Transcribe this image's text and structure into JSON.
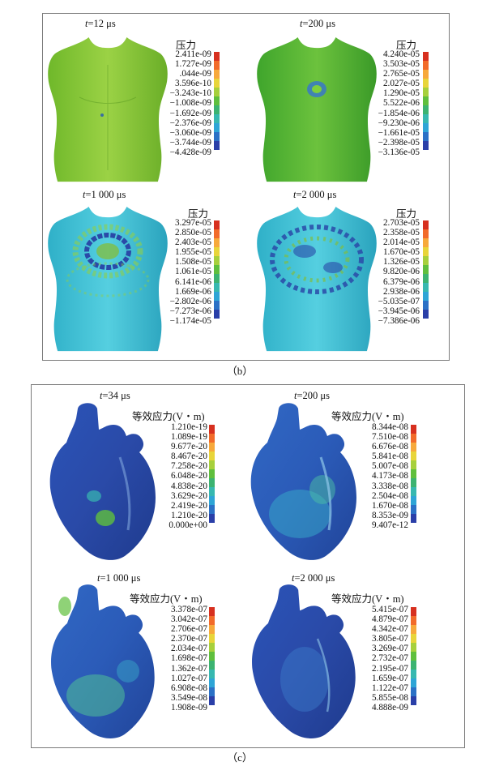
{
  "caption_b": "（b）",
  "caption_c": "（c）",
  "legend_colors": [
    "#d7301f",
    "#f26b2a",
    "#f7a93b",
    "#e8d53a",
    "#a7d03c",
    "#5fbf3d",
    "#3cb371",
    "#37b8b0",
    "#2ea5d6",
    "#2b71c6",
    "#2a3fa8"
  ],
  "section_b": {
    "panels": [
      {
        "t_var": "t",
        "t_val": "=12 μs",
        "legend_title": "压力",
        "values": [
          "2.411e-09",
          "1.727e-09",
          ".044e-09",
          "3.596e-10",
          "−3.243e-10",
          "−1.008e-09",
          "−1.692e-09",
          "−2.376e-09",
          "−3.060e-09",
          "−3.744e-09",
          "−4.428e-09"
        ]
      },
      {
        "t_var": "t",
        "t_val": "=200 μs",
        "legend_title": "压力",
        "values": [
          "4.240e-05",
          "3.503e-05",
          "2.765e-05",
          "2.027e-05",
          "1.290e-05",
          "5.522e-06",
          "−1.854e-06",
          "−9.230e-06",
          "−1.661e-05",
          "−2.398e-05",
          "−3.136e-05"
        ]
      },
      {
        "t_var": "t",
        "t_val": "=1 000 μs",
        "legend_title": "压力",
        "values": [
          "3.297e-05",
          "2.850e-05",
          "2.403e-05",
          "1.955e-05",
          "1.508e-05",
          "1.061e-05",
          "6.141e-06",
          "1.669e-06",
          "−2.802e-06",
          "−7.273e-06",
          "−1.174e-05"
        ]
      },
      {
        "t_var": "t",
        "t_val": "=2 000 μs",
        "legend_title": "压力",
        "values": [
          "2.703e-05",
          "2.358e-05",
          "2.014e-05",
          "1.670e-05",
          "1.326e-05",
          "9.820e-06",
          "6.379e-06",
          "2.938e-06",
          "−5.035e-07",
          "−3.945e-06",
          "−7.386e-06"
        ]
      }
    ]
  },
  "section_c": {
    "panels": [
      {
        "t_var": "t",
        "t_val": "=34 μs",
        "legend_title": "等效应力(V・m)",
        "values": [
          "1.210e-19",
          "1.089e-19",
          "9.677e-20",
          "8.467e-20",
          "7.258e-20",
          "6.048e-20",
          "4.838e-20",
          "3.629e-20",
          "2.419e-20",
          "1.210e-20",
          "0.000e+00"
        ]
      },
      {
        "t_var": "t",
        "t_val": "=200 μs",
        "legend_title": "等效应力(V・m)",
        "values": [
          "8.344e-08",
          "7.510e-08",
          "6.676e-08",
          "5.841e-08",
          "5.007e-08",
          "4.173e-08",
          "3.338e-08",
          "2.504e-08",
          "1.670e-08",
          "8.353e-09",
          "9.407e-12"
        ]
      },
      {
        "t_var": "t",
        "t_val": "=1 000 μs",
        "legend_title": "等效应力(V・m)",
        "values": [
          "3.378e-07",
          "3.042e-07",
          "2.706e-07",
          "2.370e-07",
          "2.034e-07",
          "1.698e-07",
          "1.362e-07",
          "1.027e-07",
          "6.908e-08",
          "3.549e-08",
          "1.908e-09"
        ]
      },
      {
        "t_var": "t",
        "t_val": "=2 000 μs",
        "legend_title": "等效应力(V・m)",
        "values": [
          "5.415e-07",
          "4.879e-07",
          "4.342e-07",
          "3.805e-07",
          "3.269e-07",
          "2.732e-07",
          "2.195e-07",
          "1.659e-07",
          "1.122e-07",
          "5.855e-08",
          "4.888e-09"
        ]
      }
    ]
  }
}
